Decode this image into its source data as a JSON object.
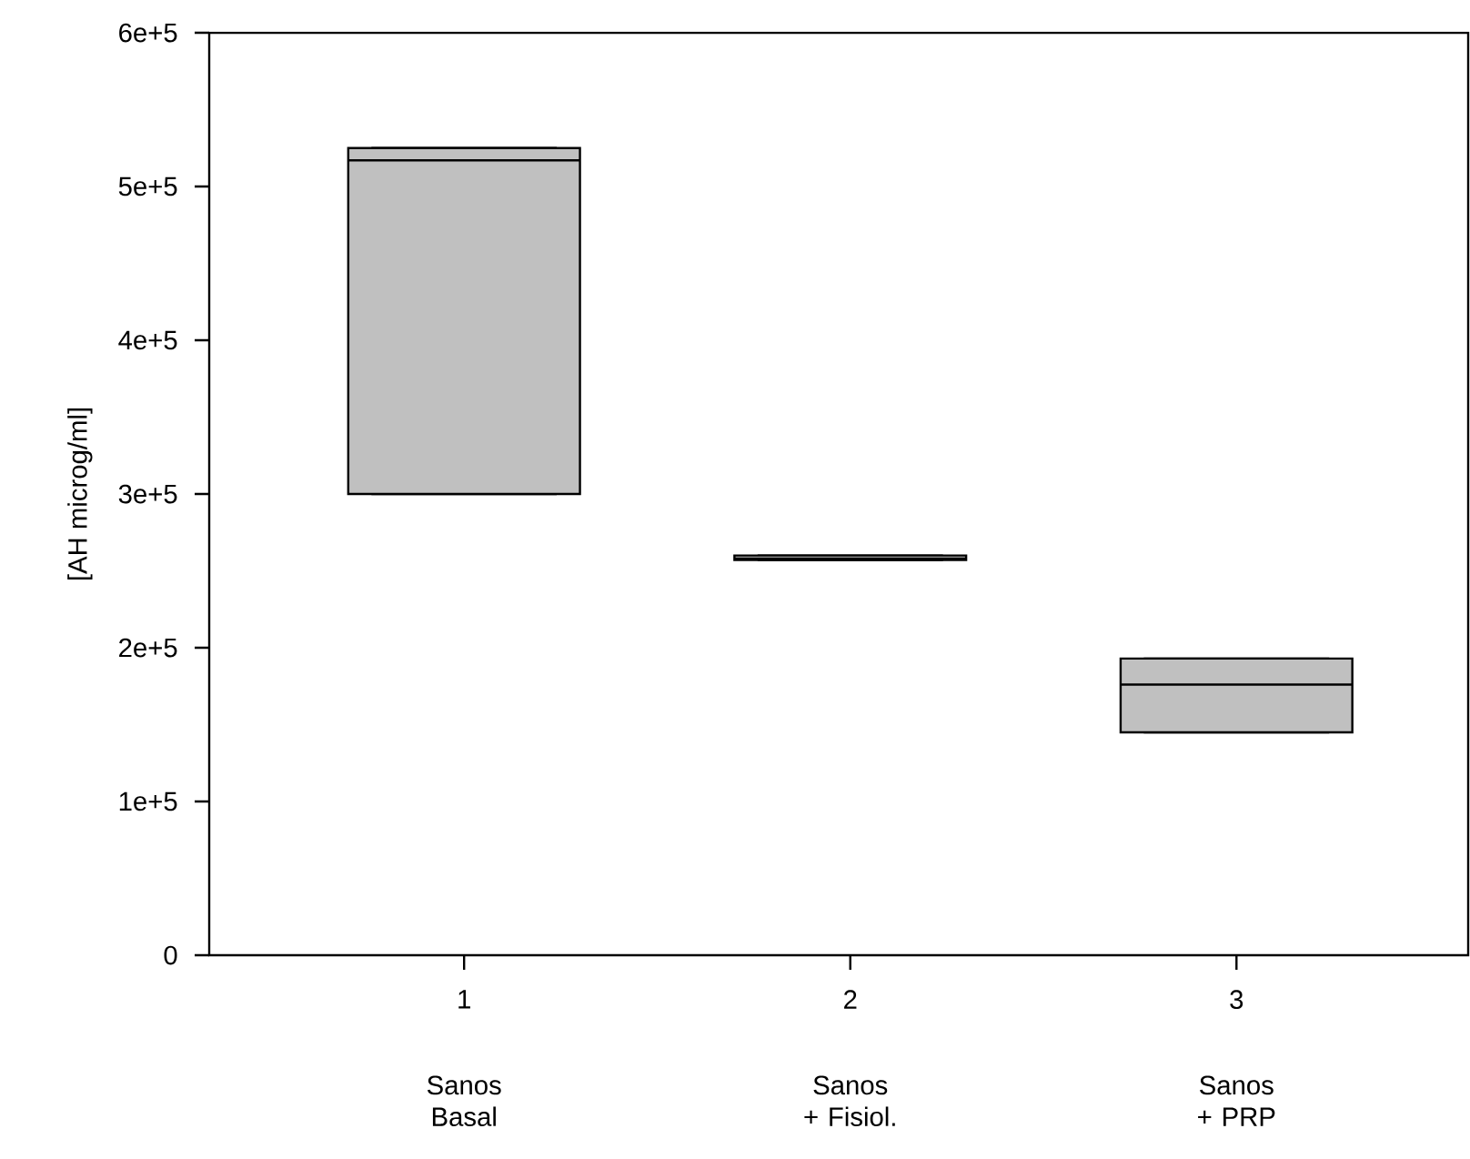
{
  "chart_data": {
    "type": "box",
    "ylabel": "[AH microg/ml]",
    "categories": [
      "1",
      "2",
      "3"
    ],
    "color": "#c0c0c0",
    "boxes": [
      {
        "low": 300000,
        "q1": 300000,
        "median": 517000,
        "q3": 525000,
        "high": 525000
      },
      {
        "low": 257000,
        "q1": 257000,
        "median": 258000,
        "q3": 260000,
        "high": 260000
      },
      {
        "low": 145000,
        "q1": 145000,
        "median": 176000,
        "q3": 193000,
        "high": 193000
      }
    ],
    "ylim": [
      0,
      600000
    ],
    "yticks": [
      0,
      {
        "value": 100000,
        "label": "1e+5"
      },
      {
        "value": 200000,
        "label": "2e+5"
      },
      {
        "value": 300000,
        "label": "3e+5"
      },
      {
        "value": 400000,
        "label": "4e+5"
      },
      {
        "value": 500000,
        "label": "5e+5"
      },
      {
        "value": 600000,
        "label": "6e+5"
      }
    ],
    "annotations": [
      "Sanos Basal",
      "Sanos + Fisiol.",
      "Sanos + PRP"
    ]
  }
}
